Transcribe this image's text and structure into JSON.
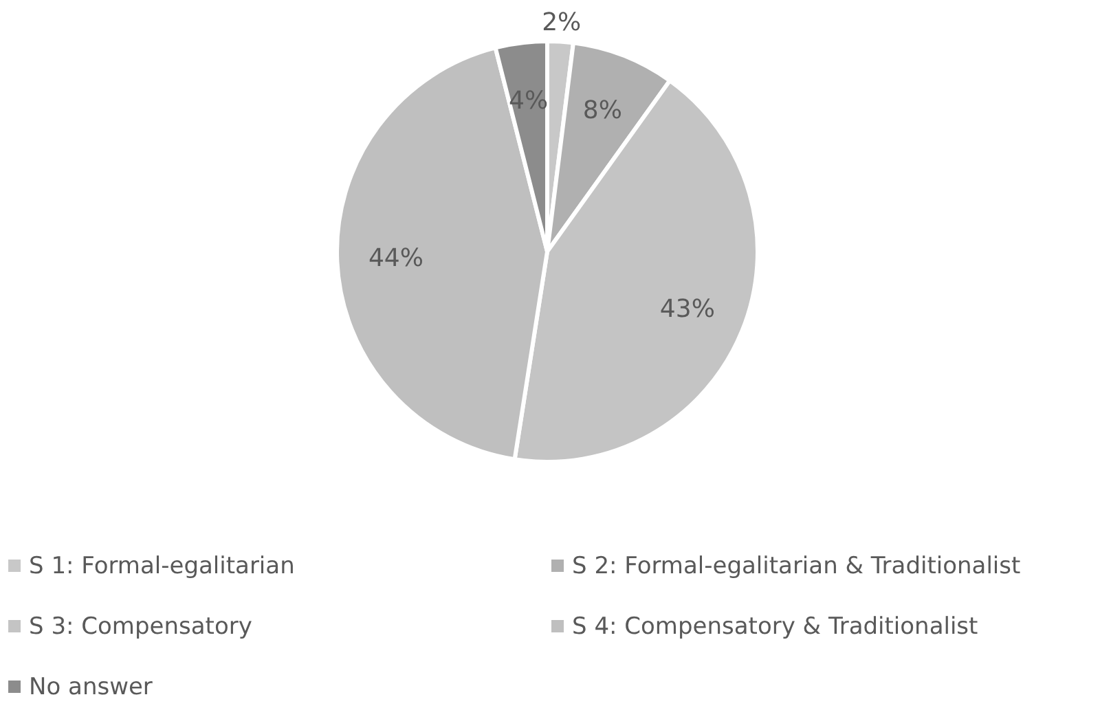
{
  "chart_data": {
    "type": "pie",
    "categories": [
      "S 1: Formal-egalitarian",
      "S 2: Formal-egalitarian & Traditionalist",
      "S 3: Compensatory",
      "S 4: Compensatory & Traditionalist",
      "No answer"
    ],
    "values": [
      2,
      8,
      43,
      44,
      4
    ],
    "value_labels": [
      "2%",
      "8%",
      "43%",
      "44%",
      "4%"
    ],
    "colors": [
      "#c8c8c8",
      "#b0b0b0",
      "#c4c4c4",
      "#bfbfbf",
      "#8c8c8c"
    ],
    "legend": "bottom"
  }
}
